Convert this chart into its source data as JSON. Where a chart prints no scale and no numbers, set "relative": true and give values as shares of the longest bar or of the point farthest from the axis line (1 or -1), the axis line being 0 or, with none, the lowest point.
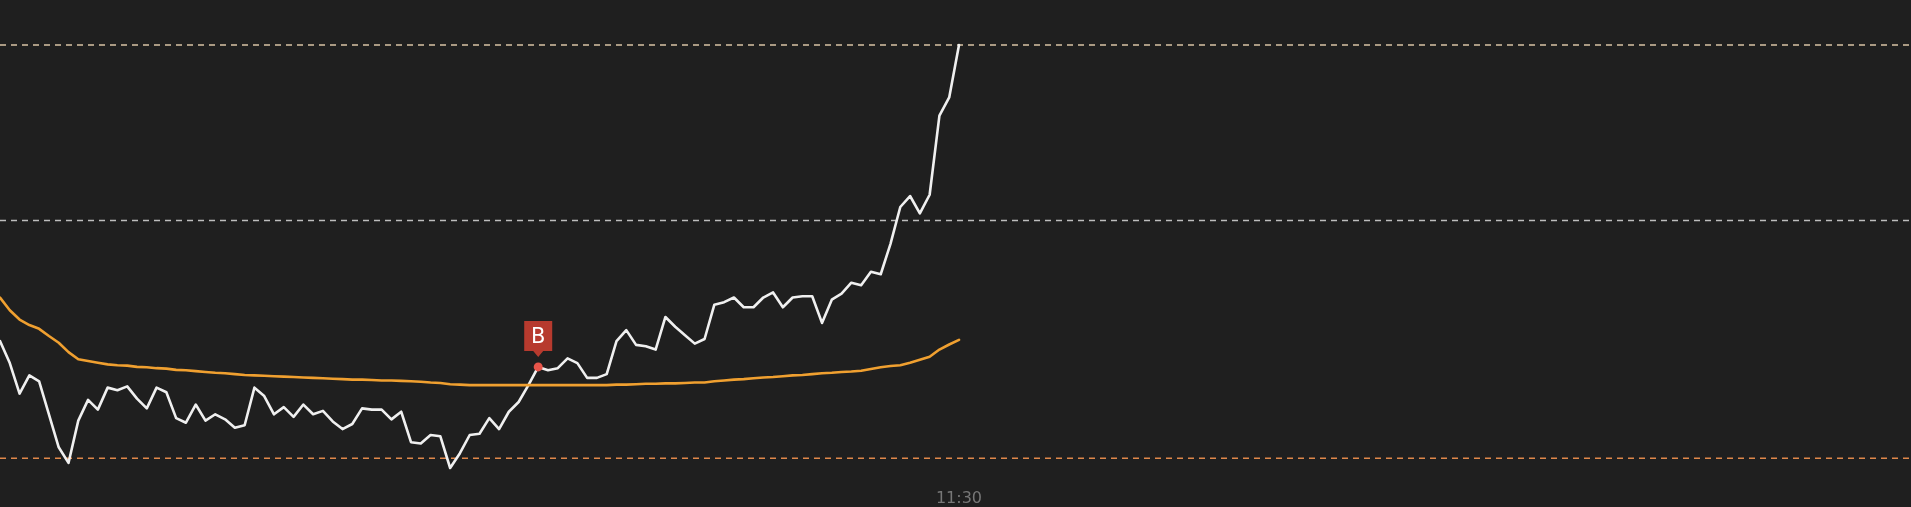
{
  "chart_data": {
    "type": "line",
    "relative": true,
    "marker": "none",
    "line_style": "solid",
    "categories": [
      null,
      null,
      null,
      null,
      null,
      null,
      null,
      null,
      null,
      null,
      null,
      null,
      null,
      null,
      null,
      null,
      null,
      null,
      null,
      null,
      null,
      null,
      null,
      null,
      null,
      null,
      null,
      null,
      null,
      null,
      null,
      null,
      null,
      null,
      null,
      null,
      null,
      null,
      null,
      null,
      null,
      null,
      null,
      null,
      null,
      null,
      null,
      null,
      null,
      null,
      null,
      null,
      null,
      null,
      null,
      null,
      null,
      null,
      null,
      null,
      null,
      null,
      null,
      null,
      null,
      null,
      null,
      null,
      null,
      null,
      null,
      null,
      null,
      null,
      null,
      null,
      null,
      null,
      null,
      null,
      null,
      null,
      null,
      null,
      null,
      null,
      null,
      null,
      null,
      null,
      null,
      null,
      null,
      null,
      null,
      null,
      null,
      null,
      null
    ],
    "ref_lines": [
      {
        "axis": "y",
        "value": 1,
        "color": "#d9c3a5",
        "line_style": "dashed"
      },
      {
        "axis": "y",
        "value": 0.585,
        "color": "#bdbdbd",
        "line_style": "dashed"
      },
      {
        "axis": "y",
        "value": 0.023,
        "color": "#e0884a",
        "line_style": "dashed"
      }
    ],
    "annotations": [
      {
        "text": "B",
        "y": 0.239
      },
      "11:30"
    ],
    "series": [
      {
        "color": "#f0f0f0",
        "values": [
          0.3,
          0.248,
          0.176,
          0.219,
          0.205,
          0.127,
          0.049,
          0.012,
          0.112,
          0.161,
          0.138,
          0.19,
          0.184,
          0.193,
          0.164,
          0.141,
          0.19,
          0.179,
          0.118,
          0.107,
          0.15,
          0.112,
          0.127,
          0.115,
          0.095,
          0.101,
          0.19,
          0.17,
          0.127,
          0.144,
          0.121,
          0.15,
          0.127,
          0.135,
          0.11,
          0.092,
          0.104,
          0.141,
          0.138,
          0.138,
          0.115,
          0.133,
          0.061,
          0.058,
          0.078,
          0.075,
          0,
          0.035,
          0.078,
          0.081,
          0.118,
          0.092,
          0.133,
          0.156,
          0.196,
          0.239,
          0.231,
          0.236,
          0.259,
          0.248,
          0.213,
          0.213,
          0.222,
          0.3,
          0.326,
          0.291,
          0.288,
          0.28,
          0.357,
          0.334,
          0.314,
          0.294,
          0.305,
          0.386,
          0.392,
          0.403,
          0.38,
          0.38,
          0.403,
          0.415,
          0.38,
          0.403,
          0.406,
          0.406,
          0.343,
          0.398,
          0.412,
          0.438,
          0.432,
          0.464,
          0.458,
          0.53,
          0.617,
          0.643,
          0.602,
          0.646,
          0.833,
          0.876,
          1
        ]
      },
      {
        "color": "#f0a030",
        "values": [
          0.403,
          0.373,
          0.351,
          0.338,
          0.329,
          0.312,
          0.296,
          0.274,
          0.257,
          0.253,
          0.249,
          0.245,
          0.243,
          0.242,
          0.239,
          0.238,
          0.236,
          0.235,
          0.232,
          0.231,
          0.229,
          0.227,
          0.225,
          0.224,
          0.222,
          0.22,
          0.219,
          0.218,
          0.217,
          0.216,
          0.215,
          0.214,
          0.213,
          0.212,
          0.211,
          0.21,
          0.209,
          0.209,
          0.208,
          0.207,
          0.207,
          0.206,
          0.205,
          0.204,
          0.202,
          0.201,
          0.198,
          0.197,
          0.196,
          0.196,
          0.196,
          0.196,
          0.196,
          0.196,
          0.196,
          0.196,
          0.196,
          0.196,
          0.196,
          0.196,
          0.196,
          0.196,
          0.196,
          0.197,
          0.197,
          0.198,
          0.199,
          0.199,
          0.2,
          0.2,
          0.201,
          0.202,
          0.202,
          0.205,
          0.207,
          0.209,
          0.21,
          0.212,
          0.214,
          0.215,
          0.217,
          0.219,
          0.22,
          0.222,
          0.224,
          0.225,
          0.227,
          0.228,
          0.23,
          0.234,
          0.238,
          0.241,
          0.243,
          0.249,
          0.256,
          0.263,
          0.28,
          0.292,
          0.303
        ]
      }
    ]
  }
}
